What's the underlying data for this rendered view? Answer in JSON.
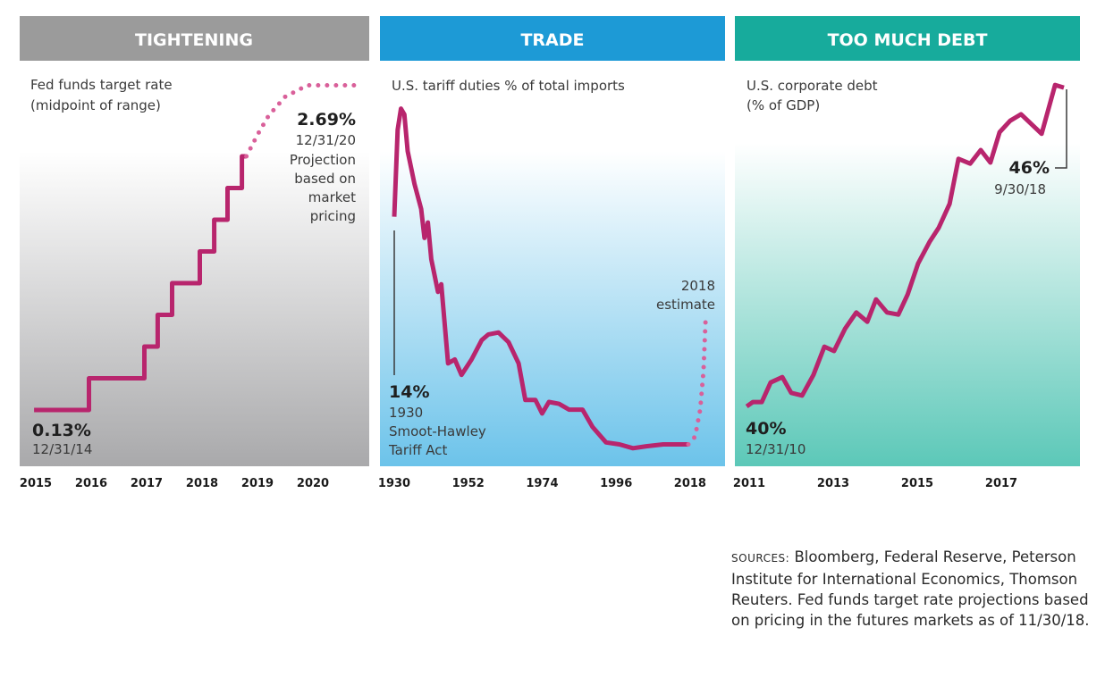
{
  "colors": {
    "line": "#b8256d",
    "projection": "#d9609a",
    "tightening": "#9b9b9b",
    "trade": "#1d9ad6",
    "debt": "#17ab9c"
  },
  "chart_data": [
    {
      "type": "line",
      "title": "TIGHTENING",
      "subtitle": [
        "Fed funds target rate",
        "(midpoint of range)"
      ],
      "xticks": [
        "2015",
        "2016",
        "2017",
        "2018",
        "2019",
        "2020"
      ],
      "xlim": [
        2014.7,
        2021.0
      ],
      "ylabel": "%",
      "series": [
        {
          "name": "Fed funds target rate",
          "style": "solid",
          "points": [
            [
              2014.97,
              0.13
            ],
            [
              2015.96,
              0.13
            ],
            [
              2015.96,
              0.38
            ],
            [
              2016.96,
              0.38
            ],
            [
              2016.96,
              0.63
            ],
            [
              2017.2,
              0.63
            ],
            [
              2017.2,
              0.88
            ],
            [
              2017.46,
              0.88
            ],
            [
              2017.46,
              1.13
            ],
            [
              2017.96,
              1.13
            ],
            [
              2017.96,
              1.38
            ],
            [
              2018.22,
              1.38
            ],
            [
              2018.22,
              1.63
            ],
            [
              2018.46,
              1.63
            ],
            [
              2018.46,
              1.88
            ],
            [
              2018.72,
              1.88
            ],
            [
              2018.72,
              2.13
            ],
            [
              2018.8,
              2.13
            ]
          ]
        },
        {
          "name": "Projection",
          "style": "dotted",
          "points": [
            [
              2018.8,
              2.13
            ],
            [
              2019.0,
              2.3
            ],
            [
              2019.2,
              2.45
            ],
            [
              2019.5,
              2.6
            ],
            [
              2019.9,
              2.69
            ],
            [
              2020.9,
              2.69
            ]
          ]
        }
      ],
      "annotations": {
        "start_value": "0.13%",
        "start_date": "12/31/14",
        "end_value": "2.69%",
        "end_date": "12/31/20",
        "end_note": [
          "Projection",
          "based on",
          "market",
          "pricing"
        ]
      }
    },
    {
      "type": "line",
      "title": "TRADE",
      "subtitle": [
        "U.S. tariff duties % of total imports"
      ],
      "xticks": [
        "1930",
        "1952",
        "1974",
        "1996",
        "2018"
      ],
      "xlim": [
        1926,
        2024
      ],
      "ylabel": "%",
      "series": [
        {
          "name": "Tariff duties % of imports",
          "style": "solid",
          "points": [
            [
              1930,
              14
            ],
            [
              1931,
              18.5
            ],
            [
              1932,
              19.6
            ],
            [
              1933,
              19.3
            ],
            [
              1934,
              17.4
            ],
            [
              1936,
              15.7
            ],
            [
              1938,
              14.4
            ],
            [
              1939,
              12.9
            ],
            [
              1940,
              13.7
            ],
            [
              1941,
              11.8
            ],
            [
              1943,
              10.1
            ],
            [
              1944,
              10.5
            ],
            [
              1946,
              6.4
            ],
            [
              1948,
              6.6
            ],
            [
              1950,
              5.8
            ],
            [
              1953,
              6.6
            ],
            [
              1956,
              7.6
            ],
            [
              1958,
              7.9
            ],
            [
              1961,
              8.0
            ],
            [
              1964,
              7.5
            ],
            [
              1967,
              6.4
            ],
            [
              1969,
              4.5
            ],
            [
              1972,
              4.5
            ],
            [
              1974,
              3.8
            ],
            [
              1976,
              4.4
            ],
            [
              1979,
              4.3
            ],
            [
              1982,
              4.0
            ],
            [
              1986,
              4.0
            ],
            [
              1989,
              3.1
            ],
            [
              1993,
              2.3
            ],
            [
              1997,
              2.2
            ],
            [
              2001,
              2.0
            ],
            [
              2005,
              2.1
            ],
            [
              2010,
              2.2
            ],
            [
              2017.5,
              2.2
            ]
          ]
        },
        {
          "name": "2018 estimate",
          "style": "dotted",
          "points": [
            [
              2017.5,
              2.2
            ],
            [
              2019.5,
              2.6
            ],
            [
              2021,
              4.0
            ],
            [
              2022,
              6.0
            ],
            [
              2022.6,
              8.6
            ]
          ]
        }
      ],
      "annotations": {
        "start_value": "14%",
        "start_year": "1930",
        "start_note": [
          "Smoot-Hawley",
          "Tariff Act"
        ],
        "estimate_note": [
          "2018",
          "estimate"
        ]
      }
    },
    {
      "type": "line",
      "title": "TOO MUCH DEBT",
      "subtitle": [
        "U.S. corporate debt",
        "(% of GDP)"
      ],
      "xticks": [
        "2011",
        "2013",
        "2015",
        "2017"
      ],
      "xlim": [
        2010.7,
        2018.8
      ],
      "ylabel": "% of GDP",
      "series": [
        {
          "name": "U.S. corporate debt % of GDP",
          "style": "solid",
          "points": [
            [
              2010.94,
              40.0
            ],
            [
              2011.09,
              40.08
            ],
            [
              2011.3,
              40.08
            ],
            [
              2011.51,
              40.44
            ],
            [
              2011.79,
              40.54
            ],
            [
              2012.0,
              40.25
            ],
            [
              2012.26,
              40.2
            ],
            [
              2012.53,
              40.58
            ],
            [
              2012.79,
              41.1
            ],
            [
              2013.02,
              41.02
            ],
            [
              2013.28,
              41.43
            ],
            [
              2013.55,
              41.73
            ],
            [
              2013.81,
              41.56
            ],
            [
              2014.02,
              41.97
            ],
            [
              2014.28,
              41.73
            ],
            [
              2014.55,
              41.69
            ],
            [
              2014.77,
              42.06
            ],
            [
              2015.02,
              42.63
            ],
            [
              2015.3,
              43.04
            ],
            [
              2015.51,
              43.29
            ],
            [
              2015.77,
              43.73
            ],
            [
              2015.98,
              44.56
            ],
            [
              2016.26,
              44.47
            ],
            [
              2016.51,
              44.72
            ],
            [
              2016.74,
              44.49
            ],
            [
              2016.96,
              45.05
            ],
            [
              2017.21,
              45.26
            ],
            [
              2017.47,
              45.38
            ],
            [
              2017.96,
              45.02
            ],
            [
              2018.28,
              45.92
            ],
            [
              2018.49,
              45.87
            ]
          ]
        }
      ],
      "annotations": {
        "start_value": "40%",
        "start_date": "12/31/10",
        "end_value": "46%",
        "end_date": "9/30/18"
      }
    }
  ],
  "sources": {
    "label": "SOURCES:",
    "text": " Bloomberg, Federal Reserve, Peterson Institute for International Economics, Thomson Reuters. Fed funds target rate projections based on pricing in the futures markets as of 11/30/18."
  }
}
